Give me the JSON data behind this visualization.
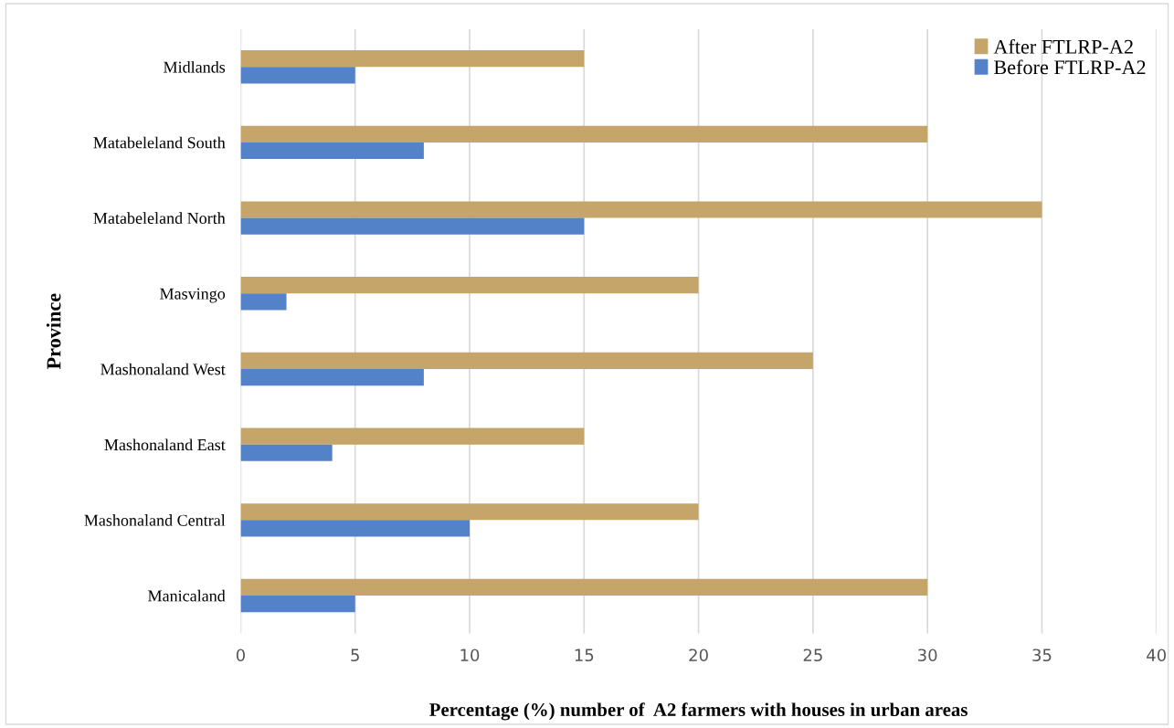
{
  "chart_data": {
    "type": "bar",
    "orientation": "horizontal",
    "ylabel": "Province",
    "xlabel": "Percentage (%) number of  A2 farmers with houses in urban areas",
    "categories": [
      "Midlands",
      "Matabeleland South",
      "Matabeleland North",
      "Masvingo",
      "Mashonaland West",
      "Mashonaland East",
      "Mashonaland Central",
      "Manicaland"
    ],
    "series": [
      {
        "name": "After FTLRP-A2",
        "color": "#c6a56a",
        "values": [
          15,
          30,
          35,
          20,
          25,
          15,
          20,
          30
        ]
      },
      {
        "name": "Before FTLRP-A2",
        "color": "#5482c8",
        "values": [
          5,
          8,
          15,
          2,
          8,
          4,
          10,
          5
        ]
      }
    ],
    "xlim": [
      0,
      40
    ],
    "xticks": [
      0,
      5,
      10,
      15,
      20,
      25,
      30,
      35,
      40
    ],
    "grid": "x",
    "legend": "top right"
  }
}
